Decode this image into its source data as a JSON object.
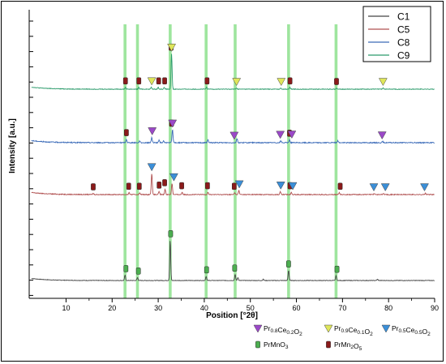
{
  "chart_data": {
    "type": "line",
    "xlabel": "Position [°2θ]",
    "ylabel": "Intensity [a.u.]",
    "xlim": [
      2,
      90
    ],
    "x_ticks": [
      10,
      20,
      30,
      40,
      50,
      60,
      70,
      80,
      90
    ],
    "y_tick_labels": "none",
    "grid": false,
    "legend_position": "top-right",
    "reference_lines_2theta": [
      22.8,
      25.5,
      32.6,
      40.4,
      46.7,
      58.3,
      68.6
    ],
    "series": [
      {
        "name": "C1",
        "color": "#444444",
        "offset": 0,
        "noise": 0.45,
        "peaks": [
          [
            22.8,
            9
          ],
          [
            25.5,
            5
          ],
          [
            32.6,
            68
          ],
          [
            40.4,
            7
          ],
          [
            46.7,
            10
          ],
          [
            47.3,
            5
          ],
          [
            52.8,
            2
          ],
          [
            58.3,
            17
          ],
          [
            68.6,
            8
          ],
          [
            77.6,
            2
          ]
        ]
      },
      {
        "name": "C5",
        "color": "#b05050",
        "offset": 1,
        "noise": 0.7,
        "peaks": [
          [
            15.9,
            2
          ],
          [
            23.7,
            3
          ],
          [
            26.0,
            3
          ],
          [
            28.6,
            36
          ],
          [
            30.2,
            5
          ],
          [
            31.5,
            9
          ],
          [
            33.0,
            19
          ],
          [
            35.2,
            4
          ],
          [
            40.8,
            4
          ],
          [
            46.6,
            3
          ],
          [
            47.5,
            7
          ],
          [
            56.5,
            5
          ],
          [
            58.9,
            4
          ],
          [
            69.3,
            3
          ],
          [
            76.9,
            2
          ],
          [
            78.9,
            2
          ],
          [
            88.0,
            2
          ]
        ]
      },
      {
        "name": "C8",
        "color": "#3a6ab8",
        "offset": 2,
        "noise": 0.8,
        "peaks": [
          [
            23.1,
            6
          ],
          [
            26.0,
            3
          ],
          [
            28.6,
            9
          ],
          [
            30.2,
            4
          ],
          [
            31.2,
            3
          ],
          [
            33.1,
            22
          ],
          [
            40.8,
            5
          ],
          [
            47.1,
            7
          ],
          [
            56.6,
            3
          ],
          [
            58.5,
            5
          ],
          [
            69.0,
            3
          ],
          [
            78.7,
            2
          ]
        ]
      },
      {
        "name": "C9",
        "color": "#2a9a6a",
        "offset": 3,
        "noise": 0.55,
        "peaks": [
          [
            22.9,
            3
          ],
          [
            25.8,
            3
          ],
          [
            28.5,
            3
          ],
          [
            30.0,
            3
          ],
          [
            31.3,
            3
          ],
          [
            32.9,
            60
          ],
          [
            40.5,
            3
          ],
          [
            47.0,
            2
          ],
          [
            56.6,
            2
          ],
          [
            58.6,
            3
          ],
          [
            68.7,
            2
          ],
          [
            78.8,
            2
          ]
        ]
      }
    ],
    "markers": [
      {
        "phase": "PrMnO3",
        "shape": "rect",
        "trace": "C1",
        "x": [
          23.0,
          25.7,
          32.7,
          40.5,
          46.6,
          58.3,
          68.8
        ]
      },
      {
        "phase": "PrMn2O5",
        "shape": "rect",
        "trace": "C9",
        "x": [
          22.9,
          25.8,
          30.1,
          31.4,
          32.8,
          40.6,
          58.6,
          68.7
        ]
      },
      {
        "phase": "Pr0.9Ce0.1O2",
        "shape": "tri",
        "trace": "C9",
        "x": [
          28.6,
          32.9,
          47.0,
          56.7,
          78.8
        ]
      },
      {
        "phase": "PrMn2O5",
        "shape": "rect",
        "trace": "C8",
        "x": [
          23.1,
          32.9,
          58.5
        ]
      },
      {
        "phase": "Pr0.8Ce0.2O2",
        "shape": "tri",
        "trace": "C8",
        "x": [
          28.7,
          33.1,
          46.5,
          56.5,
          59.0,
          78.6
        ]
      },
      {
        "phase": "PrMn2O5",
        "shape": "rect",
        "trace": "C5",
        "x": [
          15.9,
          23.6,
          25.9,
          30.2,
          31.4,
          35.1,
          40.7,
          46.5,
          58.6,
          69.5
        ]
      },
      {
        "phase": "Pr0.5Ce0.5O2",
        "shape": "tri",
        "trace": "C5",
        "x": [
          28.6,
          33.4,
          47.6,
          56.6,
          59.2,
          76.8,
          79.3,
          87.8
        ]
      }
    ],
    "legend": {
      "entries": [
        "C1",
        "C5",
        "C8",
        "C9"
      ],
      "phases": [
        {
          "label": "Pr0.8Ce0.2O2",
          "color": "#9b48c8",
          "shape": "tri"
        },
        {
          "label": "Pr0.9Ce0.1O2",
          "color": "#dfe65a",
          "shape": "tri"
        },
        {
          "label": "Pr0.5Ce0.5O2",
          "color": "#3b8fd8",
          "shape": "tri"
        },
        {
          "label": "PrMnO3",
          "color": "#4caf50",
          "shape": "rect"
        },
        {
          "label": "PrMn2O5",
          "color": "#8b1a1a",
          "shape": "rect"
        }
      ]
    }
  },
  "colors": {
    "ref_line": "#8de08d",
    "PrMnO3": "#4caf50",
    "PrMn2O5": "#8b1a1a",
    "Pr0.8Ce0.2O2": "#9b48c8",
    "Pr0.9Ce0.1O2": "#dfe65a",
    "Pr0.5Ce0.5O2": "#3b8fd8"
  }
}
